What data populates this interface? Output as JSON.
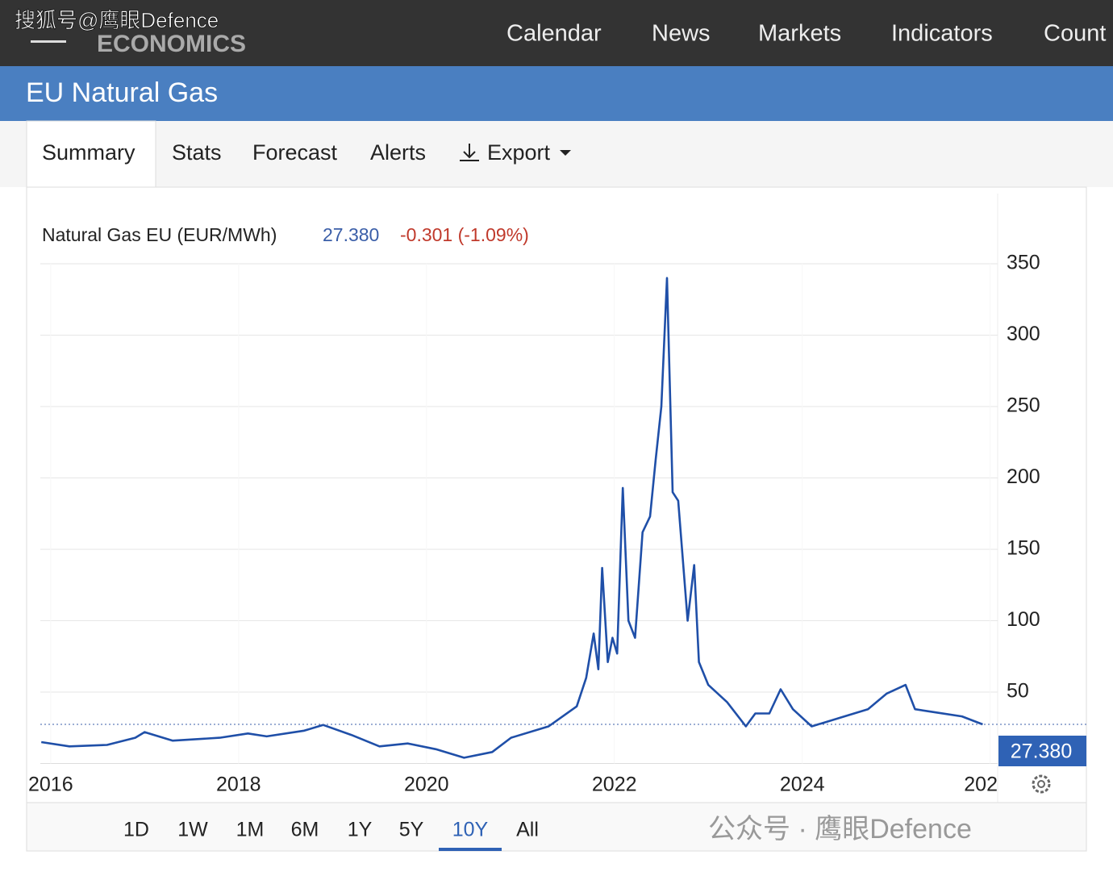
{
  "watermark_top": "搜狐号@鹰眼Defence",
  "logo": "ECONOMICS",
  "nav": [
    "Calendar",
    "News",
    "Markets",
    "Indicators",
    "Count"
  ],
  "header": {
    "title": "EU Natural Gas"
  },
  "tabs": [
    "Summary",
    "Stats",
    "Forecast",
    "Alerts",
    "Export"
  ],
  "quote": {
    "name": "Natural Gas EU (EUR/MWh)",
    "price": "27.380",
    "change": "-0.301 (-1.09%)"
  },
  "chart_data": {
    "type": "line",
    "x": [
      2015.9,
      2016.2,
      2016.6,
      2016.9,
      2017.0,
      2017.3,
      2017.8,
      2018.1,
      2018.3,
      2018.7,
      2018.9,
      2019.2,
      2019.5,
      2019.8,
      2020.1,
      2020.4,
      2020.7,
      2020.9,
      2021.3,
      2021.6,
      2021.7,
      2021.78,
      2021.83,
      2021.87,
      2021.93,
      2021.98,
      2022.03,
      2022.09,
      2022.15,
      2022.22,
      2022.3,
      2022.38,
      2022.44,
      2022.5,
      2022.56,
      2022.62,
      2022.68,
      2022.78,
      2022.85,
      2022.9,
      2023.0,
      2023.2,
      2023.4,
      2023.5,
      2023.65,
      2023.77,
      2023.9,
      2024.1,
      2024.4,
      2024.7,
      2024.9,
      2025.1,
      2025.2,
      2025.4,
      2025.7,
      2025.92
    ],
    "values": [
      15,
      12,
      13,
      18,
      22,
      16,
      18,
      21,
      19,
      23,
      27,
      20,
      12,
      14,
      10,
      4,
      8,
      18,
      26,
      40,
      60,
      91,
      66,
      137,
      71,
      88,
      77,
      193,
      100,
      88,
      162,
      173,
      213,
      250,
      340,
      190,
      184,
      100,
      139,
      71,
      55,
      43,
      26,
      35,
      35,
      52,
      38,
      26,
      32,
      38,
      49,
      55,
      38,
      36,
      33,
      27.38
    ],
    "color": "#1f4fa8",
    "xlim": [
      2015.89,
      2026.08
    ],
    "xticks": [
      2016,
      2018,
      2020,
      2022,
      2024,
      {
        "value": 2026,
        "label": "202"
      }
    ],
    "ylim": [
      0,
      350
    ],
    "yticks": [
      50,
      100,
      150,
      200,
      250,
      300,
      350
    ],
    "grid": true,
    "last_value_label": "27.380"
  },
  "range_buttons": [
    "1D",
    "1W",
    "1M",
    "6M",
    "1Y",
    "5Y",
    "10Y",
    "All"
  ],
  "active_range": "10Y",
  "watermark_bottom": "公众号 · 鹰眼Defence"
}
